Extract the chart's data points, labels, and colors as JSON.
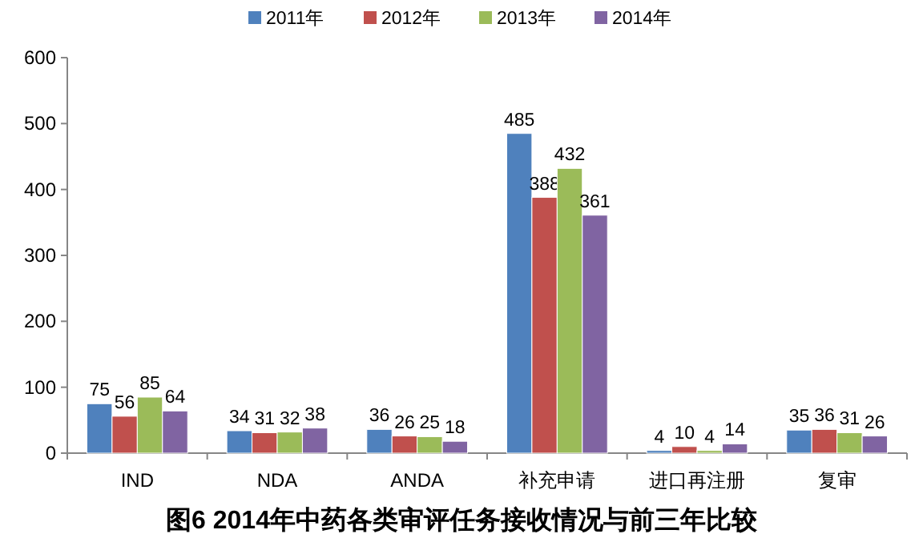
{
  "chart_data": {
    "type": "bar",
    "title": "图6 2014年中药各类审评任务接收情况与前三年比较",
    "categories": [
      "IND",
      "NDA",
      "ANDA",
      "补充申请",
      "进口再注册",
      "复审"
    ],
    "series": [
      {
        "name": "2011年",
        "color": "#4f81bd",
        "values": [
          75,
          34,
          36,
          485,
          4,
          35
        ]
      },
      {
        "name": "2012年",
        "color": "#c0504d",
        "values": [
          56,
          31,
          26,
          388,
          10,
          36
        ]
      },
      {
        "name": "2013年",
        "color": "#9bbb59",
        "values": [
          85,
          32,
          25,
          432,
          4,
          31
        ]
      },
      {
        "name": "2014年",
        "color": "#8064a2",
        "values": [
          64,
          38,
          18,
          361,
          14,
          26
        ]
      }
    ],
    "ylim": [
      0,
      600
    ],
    "yticks": [
      0,
      100,
      200,
      300,
      400,
      500,
      600
    ],
    "grid": false,
    "legend": "top",
    "data_labels": true
  }
}
